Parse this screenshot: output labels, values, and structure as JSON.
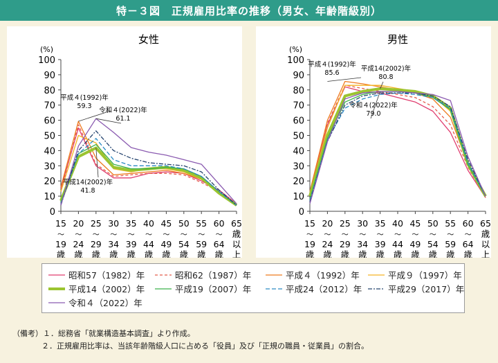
{
  "title": "特－３図　正規雇用比率の推移（男女、年齢階級別）",
  "chart_data": [
    {
      "type": "line",
      "title": "女性",
      "ylabel": "(%)",
      "ylim": [
        0,
        100
      ],
      "yticks": [
        "0",
        "10",
        "20",
        "30",
        "40",
        "50",
        "60",
        "70",
        "80",
        "90",
        "100"
      ],
      "categories": [
        [
          "15",
          "～",
          "19",
          "歳"
        ],
        [
          "20",
          "～",
          "24",
          "歳"
        ],
        [
          "25",
          "～",
          "29",
          "歳"
        ],
        [
          "30",
          "～",
          "34",
          "歳"
        ],
        [
          "35",
          "～",
          "39",
          "歳"
        ],
        [
          "40",
          "～",
          "44",
          "歳"
        ],
        [
          "45",
          "～",
          "49",
          "歳"
        ],
        [
          "50",
          "～",
          "54",
          "歳"
        ],
        [
          "55",
          "～",
          "59",
          "歳"
        ],
        [
          "60",
          "～",
          "64",
          "歳"
        ],
        [
          "65",
          "歳",
          "以",
          "上"
        ]
      ],
      "annotations": [
        {
          "label": "平成４(1992)年",
          "value": "59.3"
        },
        {
          "label": "令和４(2022)年",
          "value": "61.1"
        },
        {
          "label": "平成14(2002)年",
          "value": "41.8"
        }
      ],
      "series": [
        {
          "name": "昭和57（1982）年",
          "values": [
            15,
            55,
            30,
            22,
            22,
            25,
            26,
            25,
            20,
            14,
            5
          ]
        },
        {
          "name": "昭和62（1987）年",
          "values": [
            13,
            57,
            31,
            23,
            24,
            25,
            25,
            24,
            19,
            13,
            4
          ]
        },
        {
          "name": "平成４（1992）年",
          "values": [
            16,
            59.3,
            35,
            24,
            25,
            26,
            27,
            25,
            21,
            12,
            4
          ]
        },
        {
          "name": "平成９（1997）年",
          "values": [
            13,
            50,
            45,
            28,
            26,
            28,
            28,
            26,
            21,
            12,
            4
          ]
        },
        {
          "name": "平成14（2002）年",
          "values": [
            7,
            36,
            41.8,
            29,
            27,
            28,
            29,
            27,
            22,
            12,
            4
          ]
        },
        {
          "name": "平成19（2007）年",
          "values": [
            6,
            38,
            44,
            31,
            28,
            28,
            29,
            28,
            23,
            13,
            4
          ]
        },
        {
          "name": "平成24（2012）年",
          "values": [
            5,
            38,
            48,
            34,
            30,
            30,
            30,
            28,
            23,
            13,
            4
          ]
        },
        {
          "name": "平成29（2017）年",
          "values": [
            4,
            40,
            53,
            40,
            35,
            32,
            31,
            30,
            26,
            14,
            4
          ]
        },
        {
          "name": "令和４（2022）年",
          "values": [
            4,
            43,
            61.1,
            52,
            42,
            39,
            37,
            34,
            31,
            18,
            5
          ]
        }
      ]
    },
    {
      "type": "line",
      "title": "男性",
      "ylabel": "(%)",
      "ylim": [
        0,
        100
      ],
      "yticks": [
        "0",
        "10",
        "20",
        "30",
        "40",
        "50",
        "60",
        "70",
        "80",
        "90",
        "100"
      ],
      "categories": [
        [
          "15",
          "～",
          "19",
          "歳"
        ],
        [
          "20",
          "～",
          "24",
          "歳"
        ],
        [
          "25",
          "～",
          "29",
          "歳"
        ],
        [
          "30",
          "～",
          "34",
          "歳"
        ],
        [
          "35",
          "～",
          "39",
          "歳"
        ],
        [
          "40",
          "～",
          "44",
          "歳"
        ],
        [
          "45",
          "～",
          "49",
          "歳"
        ],
        [
          "50",
          "～",
          "54",
          "歳"
        ],
        [
          "55",
          "～",
          "59",
          "歳"
        ],
        [
          "60",
          "～",
          "64",
          "歳"
        ],
        [
          "65",
          "歳",
          "以",
          "上"
        ]
      ],
      "annotations": [
        {
          "label": "平成４(1992)年",
          "value": "85.6"
        },
        {
          "label": "平成14(2002)年",
          "value": "80.8"
        },
        {
          "label": "令和４(2022)年",
          "value": "79.0"
        }
      ],
      "series": [
        {
          "name": "昭和57（1982）年",
          "values": [
            12,
            57,
            82,
            79,
            78,
            75,
            72,
            66,
            52,
            27,
            9
          ]
        },
        {
          "name": "昭和62（1987）年",
          "values": [
            12,
            58,
            83,
            81,
            79,
            77,
            75,
            69,
            57,
            29,
            9
          ]
        },
        {
          "name": "平成４（1992）年",
          "values": [
            13,
            60,
            85.6,
            84,
            82,
            80,
            78,
            74,
            62,
            31,
            10
          ]
        },
        {
          "name": "平成９（1997）年",
          "values": [
            11,
            55,
            83,
            83,
            83,
            81,
            79,
            76,
            66,
            31,
            11
          ]
        },
        {
          "name": "平成14（2002）年",
          "values": [
            10,
            50,
            76,
            79,
            80.8,
            80,
            79,
            76,
            68,
            31,
            10
          ]
        },
        {
          "name": "平成19（2007）年",
          "values": [
            8,
            48,
            72,
            77,
            79,
            79,
            78,
            75,
            67,
            31,
            10
          ]
        },
        {
          "name": "平成24（2012）年",
          "values": [
            7,
            47,
            68,
            74,
            77,
            78,
            77,
            75,
            68,
            32,
            10
          ]
        },
        {
          "name": "平成29（2017）年",
          "values": [
            6,
            46,
            70,
            76,
            78,
            78,
            78,
            76,
            69,
            34,
            10
          ]
        },
        {
          "name": "令和４（2022）年",
          "values": [
            5,
            46,
            74,
            78,
            79.0,
            79,
            78,
            77,
            73,
            36,
            10
          ]
        }
      ]
    }
  ],
  "legend": [
    {
      "label": "昭和57（1982）年",
      "color": "#e03c6e",
      "dash": "",
      "width": 1.3
    },
    {
      "label": "昭和62（1987）年",
      "color": "#e45a4a",
      "dash": "4,3",
      "width": 1.3
    },
    {
      "label": "平成４（1992）年",
      "color": "#ee7a1e",
      "dash": "",
      "width": 1.3
    },
    {
      "label": "平成９（1997）年",
      "color": "#f5b324",
      "dash": "",
      "width": 1.3
    },
    {
      "label": "平成14（2002）年",
      "color": "#9bc430",
      "dash": "",
      "width": 4
    },
    {
      "label": "平成19（2007）年",
      "color": "#3bb04a",
      "dash": "",
      "width": 1.3
    },
    {
      "label": "平成24（2012）年",
      "color": "#2a8ac4",
      "dash": "6,3",
      "width": 1.3
    },
    {
      "label": "平成29（2017）年",
      "color": "#24436e",
      "dash": "6,2,2,2",
      "width": 1.3
    },
    {
      "label": "令和４（2022）年",
      "color": "#8a5ab0",
      "dash": "",
      "width": 1.3
    }
  ],
  "notes": {
    "head": "（備考）",
    "line1": "１．総務省「就業構造基本調査」より作成。",
    "line2": "２．正規雇用比率は、当該年齢階級人口に占める「役員」及び「正規の職員・従業員」の割合。"
  }
}
